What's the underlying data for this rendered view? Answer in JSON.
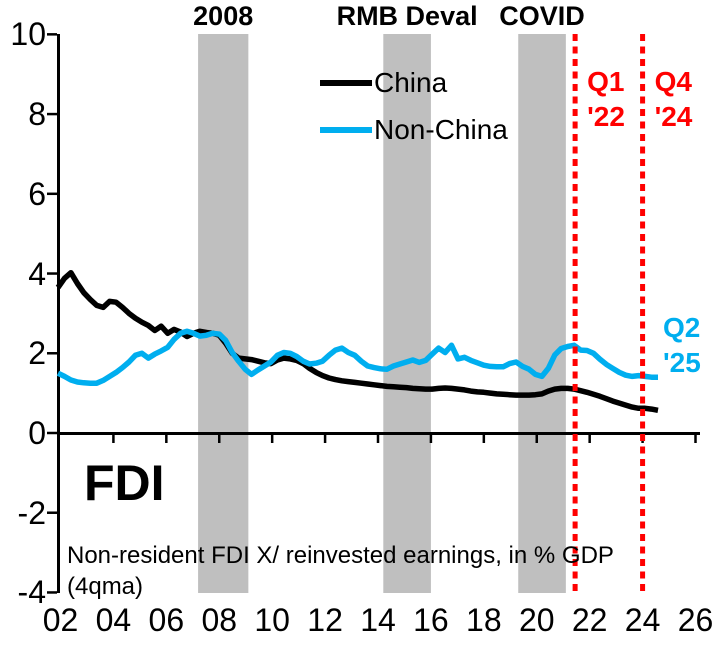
{
  "title": "FDI",
  "footnote": {
    "line1": "Non-resident FDI X/ reinvested earnings, in % GDP",
    "line2": "(4qma)"
  },
  "legend": {
    "items": [
      {
        "label": "China",
        "color": "#000000"
      },
      {
        "label": "Non-China",
        "color": "#00AEEF"
      }
    ]
  },
  "annotations": {
    "bands": [
      {
        "label": "2008",
        "start_year": 2007.2,
        "end_year": 2009.1
      },
      {
        "label": "RMB Deval",
        "start_year": 2014.2,
        "end_year": 2016.0
      },
      {
        "label": "COVID",
        "start_year": 2019.3,
        "end_year": 2021.1
      }
    ],
    "vlines": [
      {
        "label_line1": "Q1",
        "label_line2": "'22",
        "year": 2021.45,
        "color": "#FF0000"
      },
      {
        "label_line1": "Q4",
        "label_line2": "'24",
        "year": 2024.0,
        "color": "#FF0000"
      }
    ],
    "series_end_label": {
      "label_line1": "Q2",
      "label_line2": "'25",
      "color": "#00AEEF"
    }
  },
  "chart_data": {
    "type": "line",
    "x_start_year": 2002.0,
    "x_step_years": 0.25,
    "frequency": "quarterly (4qma)",
    "xlim": [
      2002,
      2026
    ],
    "ylim": [
      -4,
      10
    ],
    "y_ticks": [
      10,
      8,
      6,
      4,
      2,
      0,
      -2,
      -4
    ],
    "x_ticks": [
      {
        "label": "02",
        "year": 2002
      },
      {
        "label": "04",
        "year": 2004
      },
      {
        "label": "06",
        "year": 2006
      },
      {
        "label": "08",
        "year": 2008
      },
      {
        "label": "10",
        "year": 2010
      },
      {
        "label": "12",
        "year": 2012
      },
      {
        "label": "14",
        "year": 2014
      },
      {
        "label": "16",
        "year": 2016
      },
      {
        "label": "18",
        "year": 2018
      },
      {
        "label": "20",
        "year": 2020
      },
      {
        "label": "22",
        "year": 2022
      },
      {
        "label": "24",
        "year": 2024
      },
      {
        "label": "26",
        "year": 2026
      }
    ],
    "grid": false,
    "legend_position": "top-center-inside",
    "band_color": "#BFBFBF",
    "series": [
      {
        "name": "China",
        "color": "#000000",
        "values": [
          3.65,
          3.88,
          4.02,
          3.75,
          3.52,
          3.35,
          3.2,
          3.15,
          3.3,
          3.28,
          3.15,
          3.0,
          2.88,
          2.78,
          2.7,
          2.57,
          2.68,
          2.5,
          2.6,
          2.53,
          2.42,
          2.5,
          2.55,
          2.52,
          2.5,
          2.45,
          2.25,
          2.0,
          1.88,
          1.86,
          1.84,
          1.8,
          1.76,
          1.74,
          1.83,
          1.88,
          1.86,
          1.82,
          1.74,
          1.62,
          1.52,
          1.44,
          1.38,
          1.34,
          1.31,
          1.29,
          1.27,
          1.25,
          1.23,
          1.21,
          1.19,
          1.17,
          1.16,
          1.15,
          1.14,
          1.12,
          1.11,
          1.1,
          1.1,
          1.12,
          1.13,
          1.12,
          1.1,
          1.08,
          1.05,
          1.03,
          1.02,
          1.0,
          0.98,
          0.97,
          0.96,
          0.95,
          0.95,
          0.95,
          0.96,
          0.98,
          1.05,
          1.1,
          1.12,
          1.12,
          1.1,
          1.06,
          1.02,
          0.97,
          0.92,
          0.86,
          0.8,
          0.75,
          0.7,
          0.65,
          0.62,
          0.62,
          0.6,
          0.57
        ]
      },
      {
        "name": "Non-China",
        "color": "#00AEEF",
        "values": [
          1.5,
          1.42,
          1.33,
          1.28,
          1.26,
          1.25,
          1.25,
          1.32,
          1.42,
          1.52,
          1.64,
          1.78,
          1.95,
          2.0,
          1.88,
          1.98,
          2.06,
          2.15,
          2.35,
          2.5,
          2.55,
          2.5,
          2.43,
          2.45,
          2.5,
          2.48,
          2.32,
          2.02,
          1.8,
          1.6,
          1.47,
          1.58,
          1.68,
          1.78,
          1.95,
          2.02,
          2.0,
          1.92,
          1.8,
          1.73,
          1.75,
          1.8,
          1.95,
          2.08,
          2.13,
          2.02,
          1.95,
          1.8,
          1.68,
          1.64,
          1.61,
          1.6,
          1.68,
          1.73,
          1.78,
          1.83,
          1.77,
          1.82,
          1.98,
          2.13,
          2.02,
          2.2,
          1.86,
          1.9,
          1.82,
          1.76,
          1.7,
          1.67,
          1.66,
          1.66,
          1.74,
          1.78,
          1.67,
          1.6,
          1.47,
          1.42,
          1.62,
          1.96,
          2.12,
          2.17,
          2.2,
          2.08,
          2.07,
          2.0,
          1.85,
          1.72,
          1.62,
          1.52,
          1.45,
          1.42,
          1.44,
          1.42,
          1.4,
          1.4
        ]
      }
    ]
  }
}
